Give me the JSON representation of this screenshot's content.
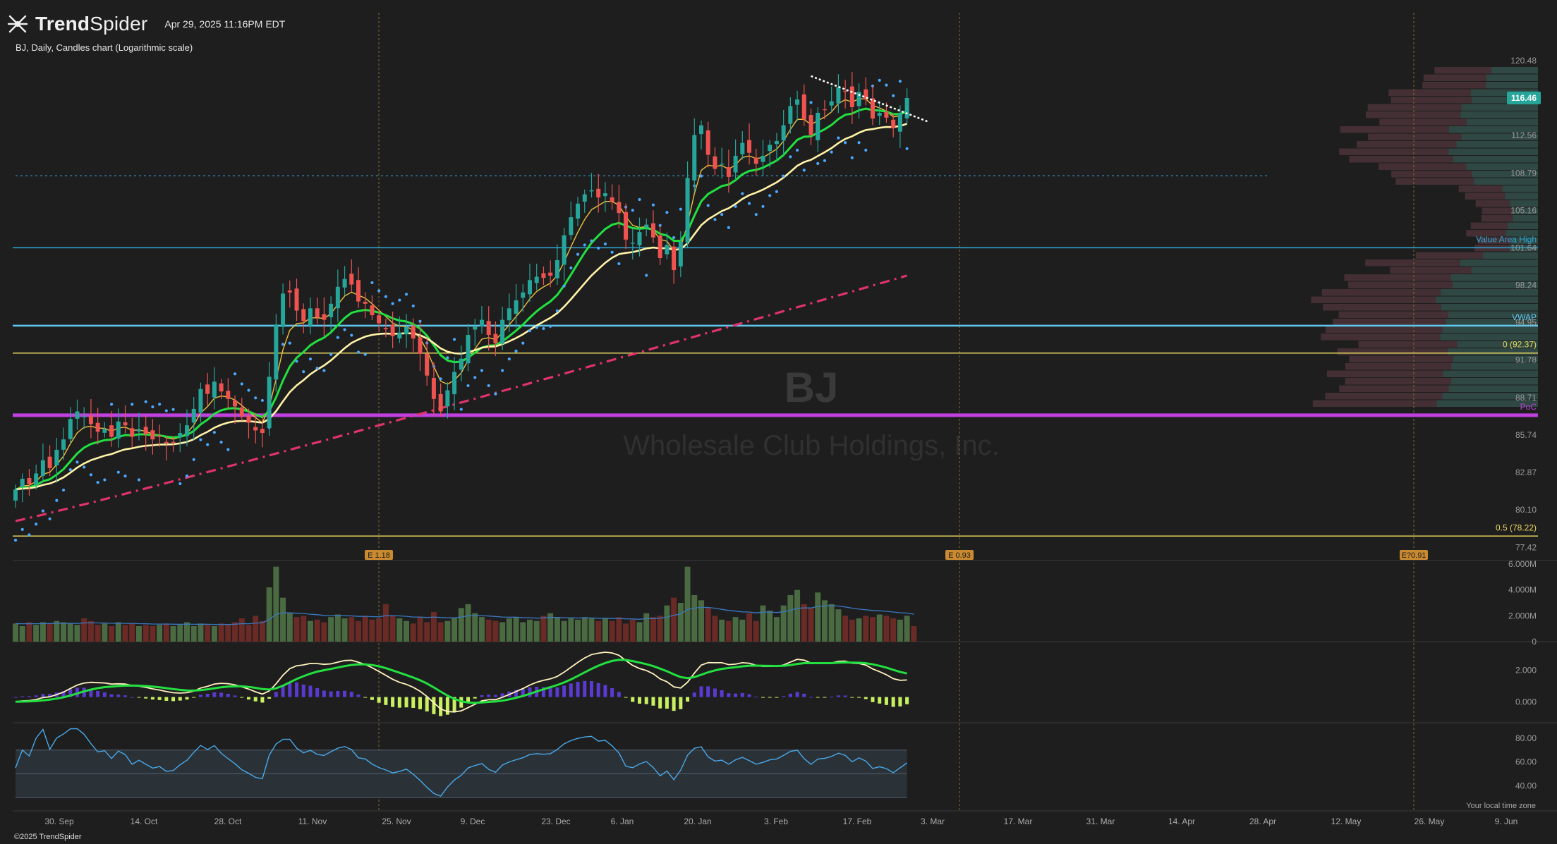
{
  "header": {
    "brand_light": "Trend",
    "brand_bold": "Spider",
    "timestamp": "Apr 29, 2025 11:16PM EDT",
    "subtitle": "BJ, Daily, Candles chart (Logarithmic scale)",
    "watermark_symbol": "BJ",
    "watermark_name": "Wholesale Club Holdings, Inc."
  },
  "footer": {
    "copyright": "©2025 TrendSpider",
    "local_time_note": "Your local time zone"
  },
  "colors": {
    "background": "#1e1e1e",
    "up_candle": "#26a69a",
    "down_candle": "#ef5350",
    "ema_fast": "#f0c040",
    "ema_mid": "#22e040",
    "ema_slow": "#fff3a8",
    "sma_long": "#e0336a",
    "psar": "#4aa8ff",
    "poc": "#c040e0",
    "vwap": "#60c8f0",
    "value_area_high": "#2fa8d8",
    "fib": "#e8d860",
    "trendline": "#ffffff",
    "macd_hist_pos": "#5a3ad0",
    "macd_hist_neg": "#c8f060",
    "rsi_line": "#4aa8e8"
  },
  "chart_data": [
    {
      "type": "candlestick",
      "name": "price",
      "scale": "log",
      "x_ticks": [
        "30. Sep",
        "14. Oct",
        "28. Oct",
        "11. Nov",
        "25. Nov",
        "9. Dec",
        "23. Dec",
        "6. Jan",
        "20. Jan",
        "3. Feb",
        "17. Feb",
        "3. Mar",
        "17. Mar",
        "31. Mar",
        "14. Apr",
        "28. Apr",
        "12. May",
        "26. May",
        "9. Jun"
      ],
      "y_ticks": [
        "120.48",
        "116.46",
        "112.56",
        "108.79",
        "105.16",
        "101.64",
        "98.24",
        "94.95",
        "91.78",
        "88.71",
        "85.74",
        "82.87",
        "80.10",
        "77.42"
      ],
      "y_range": [
        76.5,
        122.5
      ],
      "last_price": "116.46",
      "closes": [
        81.6,
        82.4,
        82.0,
        82.8,
        83.8,
        83.2,
        84.6,
        85.4,
        87.0,
        87.6,
        87.2,
        86.6,
        86.0,
        86.2,
        85.6,
        86.8,
        86.5,
        85.6,
        86.2,
        85.8,
        85.4,
        85.6,
        85.1,
        85.2,
        85.9,
        86.5,
        87.8,
        89.4,
        89.0,
        90.0,
        89.2,
        88.6,
        88.0,
        87.2,
        86.7,
        86.1,
        85.9,
        90.4,
        94.8,
        97.5,
        97.6,
        96.0,
        95.1,
        96.2,
        95.4,
        95.2,
        96.6,
        98.1,
        98.8,
        98.3,
        96.8,
        96.6,
        95.6,
        94.9,
        94.4,
        93.8,
        94.1,
        94.6,
        93.6,
        92.3,
        90.5,
        88.6,
        87.6,
        89.3,
        90.8,
        91.9,
        93.9,
        94.6,
        95.2,
        93.9,
        93.2,
        95.2,
        96.2,
        96.9,
        97.6,
        98.7,
        99.0,
        98.9,
        99.1,
        100.5,
        102.8,
        104.5,
        105.8,
        106.7,
        107.1,
        106.4,
        106.8,
        106.0,
        104.9,
        102.4,
        102.1,
        103.1,
        103.8,
        102.6,
        100.7,
        101.9,
        99.6,
        102.2,
        108.3,
        112.6,
        113.6,
        110.6,
        109.2,
        109.7,
        108.4,
        110.5,
        111.8,
        110.8,
        109.7,
        110.5,
        111.6,
        112.0,
        113.6,
        115.6,
        116.3,
        114.2,
        112.6,
        114.9,
        115.2,
        116.1,
        117.6,
        117.1,
        115.5,
        117.1,
        116.3,
        114.3,
        114.9,
        114.4,
        113.3,
        114.8,
        116.46
      ],
      "ema_fast_last": 116.3,
      "ema_mid_last": 114.8,
      "ema_slow_last": 110.3,
      "sma_long_last": 99.1,
      "levels": [
        {
          "label": "Value Area High",
          "value": 101.64
        },
        {
          "label": "VWAP",
          "value": 94.7
        },
        {
          "label": "0 (92.37)",
          "value": 92.37
        },
        {
          "label": "PoC",
          "value": 87.3
        },
        {
          "label": "0.5 (78.22)",
          "value": 78.22
        },
        {
          "label": "",
          "value": 108.5
        }
      ],
      "earnings": [
        {
          "label": "E 1.18",
          "date": "25. Nov"
        },
        {
          "label": "E 0.93",
          "date": "3. Mar"
        },
        {
          "label": "E?0.91",
          "date": "26. May"
        }
      ],
      "trendline": {
        "from": [
          116,
          118.8
        ],
        "to": [
          133,
          114.0
        ]
      }
    },
    {
      "type": "bar",
      "name": "volume",
      "y_ticks": [
        "6.000M",
        "4.000M",
        "2.000M",
        "0"
      ],
      "y_range": [
        0,
        6.0
      ],
      "values_m": [
        1.4,
        1.2,
        1.5,
        1.3,
        1.5,
        1.4,
        1.6,
        1.5,
        1.4,
        1.3,
        1.8,
        1.6,
        1.3,
        1.4,
        1.2,
        1.5,
        1.3,
        1.4,
        1.2,
        1.3,
        1.2,
        1.3,
        1.4,
        1.2,
        1.3,
        1.5,
        1.2,
        1.4,
        1.3,
        1.2,
        1.4,
        1.3,
        1.5,
        1.8,
        1.3,
        2.0,
        1.6,
        4.2,
        5.8,
        3.4,
        2.2,
        1.9,
        2.0,
        1.6,
        1.7,
        1.5,
        1.9,
        2.1,
        1.8,
        1.9,
        1.6,
        2.0,
        1.7,
        1.8,
        2.9,
        2.0,
        1.8,
        1.6,
        1.4,
        1.9,
        1.5,
        2.3,
        1.5,
        1.6,
        1.8,
        2.6,
        2.9,
        2.2,
        1.9,
        1.7,
        1.6,
        1.5,
        1.8,
        1.9,
        1.5,
        1.7,
        1.6,
        2.0,
        2.2,
        1.9,
        1.6,
        1.8,
        1.7,
        1.9,
        1.8,
        1.6,
        1.8,
        1.6,
        1.9,
        1.4,
        1.7,
        1.5,
        2.2,
        1.9,
        2.0,
        2.8,
        3.4,
        3.0,
        5.8,
        3.6,
        3.2,
        2.6,
        2.0,
        1.7,
        1.6,
        1.9,
        1.7,
        2.2,
        1.6,
        2.8,
        2.4,
        1.9,
        2.8,
        3.6,
        4.0,
        2.9,
        2.6,
        3.8,
        3.2,
        2.9,
        2.5,
        2.0,
        1.7,
        1.8,
        2.0,
        1.9,
        2.1,
        2.0,
        1.8,
        1.7,
        2.0,
        1.2
      ],
      "volume_ma_last": 2.0
    },
    {
      "type": "line",
      "name": "macd",
      "y_ticks": [
        "2.000",
        "0.000"
      ],
      "y_range": [
        -1.2,
        3.6
      ]
    },
    {
      "type": "line",
      "name": "rsi",
      "y_ticks": [
        "80.00",
        "60.00",
        "40.00"
      ],
      "y_range": [
        20,
        90
      ],
      "bands": [
        70,
        50,
        30
      ],
      "last": 55
    }
  ]
}
